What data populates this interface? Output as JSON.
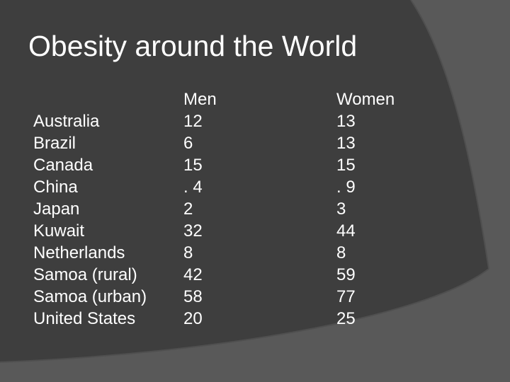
{
  "slide": {
    "title": "Obesity around the World",
    "background_color": "#595959",
    "panel_color": "#3e3e3e",
    "text_color": "#ffffff"
  },
  "table": {
    "headers": [
      "",
      "Men",
      "Women"
    ],
    "rows": [
      {
        "country": "Australia",
        "men": "12",
        "women": "13"
      },
      {
        "country": "Brazil",
        "men": "6",
        "women": "13"
      },
      {
        "country": "Canada",
        "men": "15",
        "women": "15"
      },
      {
        "country": "China",
        "men": ". 4",
        "women": ". 9"
      },
      {
        "country": "Japan",
        "men": "2",
        "women": "3"
      },
      {
        "country": "Kuwait",
        "men": "32",
        "women": "44"
      },
      {
        "country": "Netherlands",
        "men": "8",
        "women": "8"
      },
      {
        "country": "Samoa (rural)",
        "men": "42",
        "women": "59"
      },
      {
        "country": "Samoa (urban)",
        "men": "58",
        "women": "77"
      },
      {
        "country": "United States",
        "men": "20",
        "women": "25"
      }
    ]
  }
}
